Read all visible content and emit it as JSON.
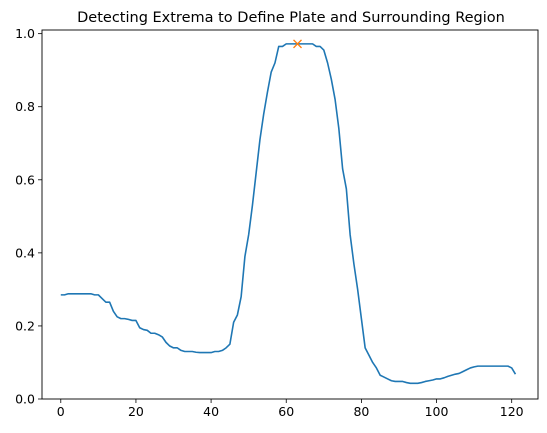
{
  "chart_data": {
    "type": "line",
    "title": "Detecting Extrema to Define Plate and Surrounding Region",
    "xlabel": "",
    "ylabel": "",
    "xlim": [
      -5,
      127
    ],
    "ylim": [
      0,
      1.01
    ],
    "xticks": [
      0,
      20,
      40,
      60,
      80,
      100,
      120
    ],
    "xtick_labels": [
      "0",
      "20",
      "40",
      "60",
      "80",
      "100",
      "120"
    ],
    "yticks": [
      0.0,
      0.2,
      0.4,
      0.6,
      0.8,
      1.0
    ],
    "ytick_labels": [
      "0.0",
      "0.2",
      "0.4",
      "0.6",
      "0.8",
      "1.0"
    ],
    "grid": false,
    "series": [
      {
        "color": "#1f77b4",
        "x": [
          0,
          1,
          2,
          3,
          4,
          5,
          6,
          7,
          8,
          9,
          10,
          11,
          12,
          13,
          14,
          15,
          16,
          17,
          18,
          19,
          20,
          21,
          22,
          23,
          24,
          25,
          26,
          27,
          28,
          29,
          30,
          31,
          32,
          33,
          34,
          35,
          36,
          37,
          38,
          39,
          40,
          41,
          42,
          43,
          44,
          45,
          46,
          47,
          48,
          49,
          50,
          51,
          52,
          53,
          54,
          55,
          56,
          57,
          58,
          59,
          60,
          61,
          62,
          63,
          64,
          65,
          66,
          67,
          68,
          69,
          70,
          71,
          72,
          73,
          74,
          75,
          76,
          77,
          78,
          79,
          80,
          81,
          82,
          83,
          84,
          85,
          86,
          87,
          88,
          89,
          90,
          91,
          92,
          93,
          94,
          95,
          96,
          97,
          98,
          99,
          100,
          101,
          102,
          103,
          104,
          105,
          106,
          107,
          108,
          109,
          110,
          111,
          112,
          113,
          114,
          115,
          116,
          117,
          118,
          119,
          120,
          121
        ],
        "y": [
          0.285,
          0.285,
          0.288,
          0.288,
          0.288,
          0.288,
          0.288,
          0.288,
          0.288,
          0.285,
          0.285,
          0.275,
          0.265,
          0.265,
          0.24,
          0.225,
          0.22,
          0.22,
          0.218,
          0.215,
          0.215,
          0.195,
          0.19,
          0.188,
          0.18,
          0.18,
          0.176,
          0.17,
          0.155,
          0.145,
          0.14,
          0.14,
          0.133,
          0.13,
          0.13,
          0.13,
          0.128,
          0.127,
          0.127,
          0.127,
          0.127,
          0.13,
          0.13,
          0.133,
          0.14,
          0.15,
          0.21,
          0.23,
          0.28,
          0.39,
          0.45,
          0.53,
          0.62,
          0.71,
          0.78,
          0.84,
          0.895,
          0.92,
          0.965,
          0.965,
          0.972,
          0.972,
          0.972,
          0.972,
          0.972,
          0.972,
          0.972,
          0.972,
          0.965,
          0.965,
          0.955,
          0.92,
          0.875,
          0.82,
          0.74,
          0.63,
          0.575,
          0.45,
          0.37,
          0.3,
          0.22,
          0.14,
          0.12,
          0.1,
          0.085,
          0.065,
          0.06,
          0.055,
          0.05,
          0.048,
          0.048,
          0.048,
          0.045,
          0.043,
          0.043,
          0.043,
          0.045,
          0.048,
          0.05,
          0.052,
          0.055,
          0.055,
          0.058,
          0.062,
          0.065,
          0.068,
          0.07,
          0.075,
          0.08,
          0.085,
          0.088,
          0.09,
          0.09,
          0.09,
          0.09,
          0.09,
          0.09,
          0.09,
          0.09,
          0.09,
          0.085,
          0.068
        ]
      }
    ],
    "markers": [
      {
        "x": 63,
        "y": 0.972,
        "symbol": "x",
        "color": "#ff7f0e"
      }
    ]
  }
}
